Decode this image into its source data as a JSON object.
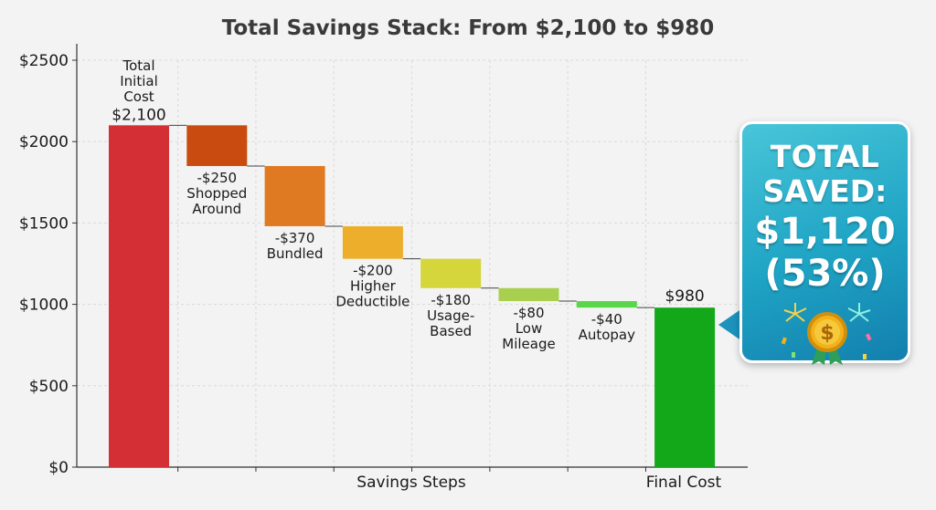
{
  "chart_data": {
    "type": "waterfall",
    "title": "Total Savings Stack: From $2,100 to $980",
    "xlabel": "Savings Steps",
    "xlabel_right": "Final Cost",
    "ylim": [
      0,
      2500
    ],
    "yticks": [
      0,
      500,
      1000,
      1500,
      2000,
      2500
    ],
    "ytick_labels": [
      "$0",
      "$500",
      "$1000",
      "$1500",
      "$2000",
      "$2500"
    ],
    "grid": true,
    "steps": [
      {
        "kind": "total",
        "name_lines": [
          "Total",
          "Initial",
          "Cost"
        ],
        "value": 2100,
        "value_label": "$2,100",
        "color": "#d32f34"
      },
      {
        "kind": "delta",
        "value": -250,
        "value_label": "-$250",
        "name_lines": [
          "Shopped",
          "Around"
        ],
        "color": "#c94b0f"
      },
      {
        "kind": "delta",
        "value": -370,
        "value_label": "-$370",
        "name_lines": [
          "Bundled"
        ],
        "color": "#e07a22"
      },
      {
        "kind": "delta",
        "value": -200,
        "value_label": "-$200",
        "name_lines": [
          "Higher",
          "Deductible"
        ],
        "color": "#ecae2b"
      },
      {
        "kind": "delta",
        "value": -180,
        "value_label": "-$180",
        "name_lines": [
          "Usage-",
          "Based"
        ],
        "color": "#d5d53c"
      },
      {
        "kind": "delta",
        "value": -80,
        "value_label": "-$80",
        "name_lines": [
          "Low",
          "Mileage"
        ],
        "color": "#a8d04e"
      },
      {
        "kind": "delta",
        "value": -40,
        "value_label": "-$40",
        "name_lines": [
          "Autopay"
        ],
        "color": "#5ad64a"
      },
      {
        "kind": "total",
        "value": 980,
        "value_label": "$980",
        "name_lines": [],
        "color": "#12a81a"
      }
    ]
  },
  "callout": {
    "line1": "TOTAL",
    "line2": "SAVED:",
    "line3": "$1,120",
    "line4": "(53%)",
    "medal_symbol": "$",
    "medal_icon": "medal-icon",
    "colors": {
      "start": "#48c6d9",
      "end": "#137fae",
      "medal": "#f2b21c",
      "ribbon": "#2e9e5a"
    }
  }
}
